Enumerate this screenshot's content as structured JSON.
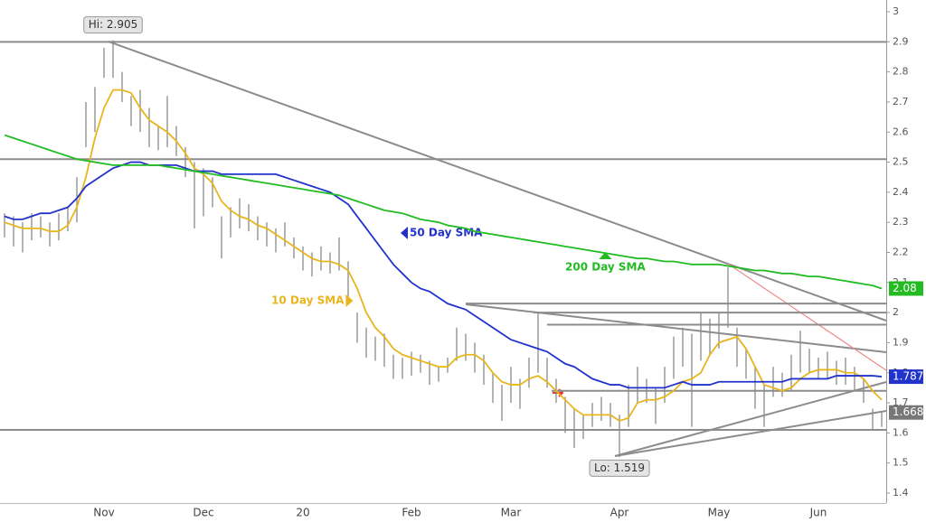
{
  "chart_data": {
    "type": "ohlc",
    "categories": [
      null,
      null,
      null,
      null,
      null,
      null,
      null,
      null,
      null,
      null,
      null,
      "Nov",
      null,
      null,
      null,
      null,
      null,
      null,
      null,
      null,
      null,
      null,
      "Dec",
      null,
      null,
      null,
      null,
      null,
      null,
      null,
      null,
      null,
      null,
      "20",
      null,
      null,
      null,
      null,
      null,
      null,
      null,
      null,
      null,
      null,
      null,
      "Feb",
      null,
      null,
      null,
      null,
      null,
      null,
      null,
      null,
      null,
      null,
      "Mar",
      null,
      null,
      null,
      null,
      null,
      null,
      null,
      null,
      null,
      null,
      null,
      "Apr",
      null,
      null,
      null,
      null,
      null,
      null,
      null,
      null,
      null,
      null,
      "May",
      null,
      null,
      null,
      null,
      null,
      null,
      null,
      null,
      null,
      null,
      "Jun",
      null,
      null,
      null,
      null,
      null,
      null,
      null
    ],
    "high": [
      2.33,
      2.32,
      2.3,
      2.33,
      2.32,
      2.3,
      2.33,
      2.35,
      2.45,
      2.7,
      2.75,
      2.88,
      2.905,
      2.8,
      2.72,
      2.74,
      2.68,
      2.62,
      2.72,
      2.62,
      2.55,
      2.5,
      2.48,
      2.45,
      2.32,
      2.35,
      2.38,
      2.36,
      2.32,
      2.3,
      2.28,
      2.3,
      2.25,
      2.22,
      2.2,
      2.22,
      2.2,
      2.25,
      2.17,
      2.0,
      1.95,
      1.92,
      1.93,
      1.86,
      1.85,
      1.87,
      1.86,
      1.84,
      1.82,
      1.85,
      1.95,
      1.93,
      1.9,
      1.86,
      1.8,
      1.76,
      1.82,
      1.78,
      1.85,
      2.0,
      1.85,
      1.78,
      1.72,
      1.68,
      1.66,
      1.7,
      1.72,
      1.7,
      1.66,
      1.76,
      1.82,
      1.78,
      1.75,
      1.82,
      1.92,
      1.95,
      1.93,
      2.0,
      1.98,
      2.0,
      2.15,
      1.95,
      1.88,
      1.82,
      1.76,
      1.82,
      1.8,
      1.86,
      1.94,
      1.88,
      1.85,
      1.87,
      1.84,
      1.85,
      1.82,
      1.78,
      1.68,
      1.67
    ],
    "low": [
      2.25,
      2.22,
      2.2,
      2.24,
      2.25,
      2.22,
      2.24,
      2.27,
      2.3,
      2.55,
      2.6,
      2.78,
      2.78,
      2.7,
      2.62,
      2.6,
      2.55,
      2.54,
      2.55,
      2.52,
      2.45,
      2.28,
      2.32,
      2.35,
      2.18,
      2.25,
      2.28,
      2.27,
      2.24,
      2.22,
      2.2,
      2.22,
      2.18,
      2.14,
      2.12,
      2.14,
      2.13,
      2.14,
      2.05,
      1.9,
      1.85,
      1.84,
      1.82,
      1.78,
      1.78,
      1.79,
      1.8,
      1.76,
      1.77,
      1.8,
      1.84,
      1.84,
      1.8,
      1.76,
      1.7,
      1.64,
      1.7,
      1.68,
      1.75,
      1.8,
      1.75,
      1.7,
      1.6,
      1.55,
      1.58,
      1.62,
      1.64,
      1.62,
      1.519,
      1.62,
      1.7,
      1.7,
      1.63,
      1.7,
      1.78,
      1.82,
      1.62,
      1.84,
      1.86,
      1.88,
      1.95,
      1.82,
      1.78,
      1.68,
      1.62,
      1.72,
      1.72,
      1.74,
      1.8,
      1.8,
      1.78,
      1.78,
      1.76,
      1.76,
      1.74,
      1.7,
      1.61,
      1.62
    ],
    "last": 1.668,
    "color": "#8a8a8a",
    "series": [
      {
        "name": "10 Day SMA",
        "color": "#e8b51c",
        "tag": false,
        "values": [
          2.3,
          2.29,
          2.28,
          2.28,
          2.28,
          2.27,
          2.27,
          2.29,
          2.35,
          2.45,
          2.58,
          2.68,
          2.74,
          2.74,
          2.73,
          2.68,
          2.64,
          2.62,
          2.6,
          2.57,
          2.53,
          2.48,
          2.46,
          2.43,
          2.37,
          2.34,
          2.32,
          2.31,
          2.29,
          2.28,
          2.26,
          2.24,
          2.22,
          2.2,
          2.18,
          2.17,
          2.17,
          2.16,
          2.14,
          2.08,
          2.0,
          1.95,
          1.92,
          1.88,
          1.86,
          1.85,
          1.84,
          1.83,
          1.82,
          1.82,
          1.85,
          1.86,
          1.86,
          1.84,
          1.8,
          1.77,
          1.76,
          1.76,
          1.78,
          1.79,
          1.77,
          1.74,
          1.71,
          1.68,
          1.66,
          1.66,
          1.66,
          1.66,
          1.64,
          1.65,
          1.7,
          1.71,
          1.71,
          1.72,
          1.74,
          1.77,
          1.78,
          1.8,
          1.86,
          1.9,
          1.91,
          1.92,
          1.88,
          1.82,
          1.76,
          1.75,
          1.74,
          1.75,
          1.78,
          1.8,
          1.81,
          1.81,
          1.81,
          1.8,
          1.8,
          1.78,
          1.74,
          1.71
        ]
      },
      {
        "name": "50 Day SMA",
        "color": "#2233cc",
        "tag": true,
        "values": [
          2.32,
          2.31,
          2.31,
          2.32,
          2.33,
          2.33,
          2.34,
          2.35,
          2.38,
          2.42,
          2.44,
          2.46,
          2.48,
          2.49,
          2.5,
          2.5,
          2.49,
          2.49,
          2.49,
          2.49,
          2.48,
          2.47,
          2.47,
          2.47,
          2.46,
          2.46,
          2.46,
          2.46,
          2.46,
          2.46,
          2.46,
          2.45,
          2.44,
          2.43,
          2.42,
          2.41,
          2.4,
          2.38,
          2.36,
          2.32,
          2.28,
          2.24,
          2.2,
          2.16,
          2.13,
          2.1,
          2.08,
          2.07,
          2.05,
          2.03,
          2.02,
          2.01,
          1.99,
          1.97,
          1.95,
          1.93,
          1.91,
          1.9,
          1.89,
          1.88,
          1.87,
          1.85,
          1.83,
          1.82,
          1.8,
          1.78,
          1.77,
          1.76,
          1.76,
          1.75,
          1.75,
          1.75,
          1.75,
          1.75,
          1.76,
          1.77,
          1.76,
          1.76,
          1.76,
          1.77,
          1.77,
          1.77,
          1.77,
          1.77,
          1.77,
          1.77,
          1.77,
          1.78,
          1.78,
          1.78,
          1.78,
          1.78,
          1.79,
          1.79,
          1.79,
          1.79,
          1.79,
          1.787
        ]
      },
      {
        "name": "200 Day SMA",
        "color": "#22bb22",
        "tag": true,
        "values": [
          2.59,
          2.58,
          2.57,
          2.56,
          2.55,
          2.54,
          2.53,
          2.52,
          2.51,
          2.505,
          2.5,
          2.495,
          2.49,
          2.49,
          2.49,
          2.49,
          2.49,
          2.49,
          2.485,
          2.48,
          2.475,
          2.47,
          2.465,
          2.46,
          2.455,
          2.45,
          2.445,
          2.44,
          2.435,
          2.43,
          2.425,
          2.42,
          2.415,
          2.41,
          2.405,
          2.4,
          2.395,
          2.39,
          2.38,
          2.37,
          2.36,
          2.35,
          2.34,
          2.335,
          2.33,
          2.32,
          2.31,
          2.305,
          2.3,
          2.29,
          2.285,
          2.28,
          2.27,
          2.265,
          2.26,
          2.255,
          2.25,
          2.245,
          2.24,
          2.235,
          2.23,
          2.225,
          2.22,
          2.215,
          2.21,
          2.205,
          2.2,
          2.195,
          2.19,
          2.185,
          2.18,
          2.18,
          2.175,
          2.17,
          2.17,
          2.165,
          2.16,
          2.16,
          2.16,
          2.16,
          2.155,
          2.15,
          2.145,
          2.14,
          2.14,
          2.135,
          2.13,
          2.13,
          2.125,
          2.12,
          2.12,
          2.115,
          2.11,
          2.105,
          2.1,
          2.095,
          2.09,
          2.08
        ]
      }
    ],
    "annotations": [
      {
        "text": "Hi: 2.905",
        "value": 2.905
      },
      {
        "text": "Lo: 1.519",
        "value": 1.519
      }
    ],
    "hlines": [
      2.9,
      2.51,
      2.03,
      2.0,
      1.96,
      1.74,
      1.61
    ],
    "ylim": [
      1.4,
      3
    ],
    "yticks": [
      1.4,
      1.5,
      1.6,
      1.7,
      1.8,
      1.9,
      2,
      2.1,
      2.2,
      2.3,
      2.4,
      2.5,
      2.6,
      2.7,
      2.8,
      2.9,
      3
    ]
  }
}
